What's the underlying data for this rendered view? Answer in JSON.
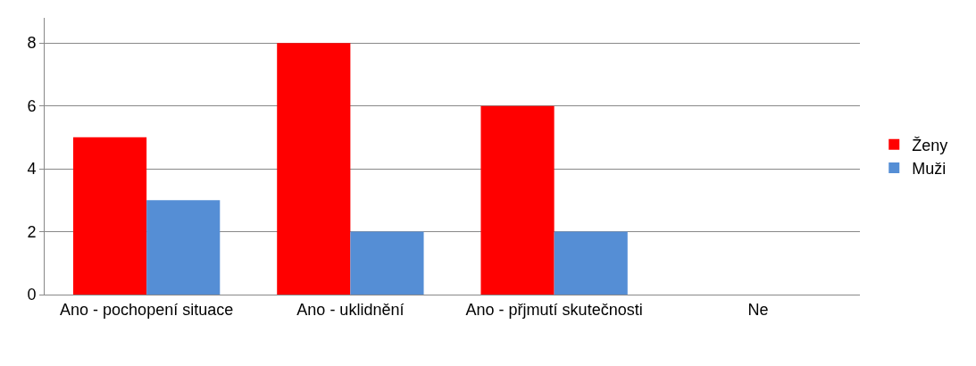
{
  "chart_data": {
    "type": "bar",
    "categories": [
      "Ano - pochopení situace",
      "Ano - uklidnění",
      "Ano - přjmutí skutečnosti",
      "Ne"
    ],
    "series": [
      {
        "name": "Ženy",
        "color": "#ff0000",
        "values": [
          5,
          8,
          6,
          0
        ]
      },
      {
        "name": "Muži",
        "color": "#558ed5",
        "values": [
          3,
          2,
          2,
          0
        ]
      }
    ],
    "ylim": [
      0,
      8.8
    ],
    "yticks": [
      0,
      2,
      4,
      6,
      8
    ],
    "grid": "y",
    "legend": "right"
  }
}
